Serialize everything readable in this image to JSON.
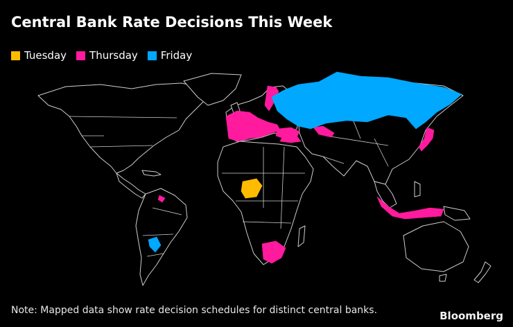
{
  "title": "Central Bank Rate Decisions This Week",
  "legend": [
    {
      "label": "Tuesday",
      "color": "#ffbb00"
    },
    {
      "label": "Thursday",
      "color": "#ff1a9e"
    },
    {
      "label": "Friday",
      "color": "#00a8ff"
    }
  ],
  "map": {
    "highlighted": {
      "tuesday": [
        "Nigeria"
      ],
      "thursday": [
        "Norway",
        "Switzerland",
        "Spain",
        "Italy",
        "Turkey",
        "Georgia",
        "Egypt",
        "Japan",
        "Indonesia",
        "South Africa",
        "Trinidad and Tobago"
      ],
      "friday": [
        "Russia",
        "Paraguay"
      ]
    }
  },
  "note": "Note: Mapped data show rate decision schedules for distinct central banks.",
  "brand": "Bloomberg"
}
